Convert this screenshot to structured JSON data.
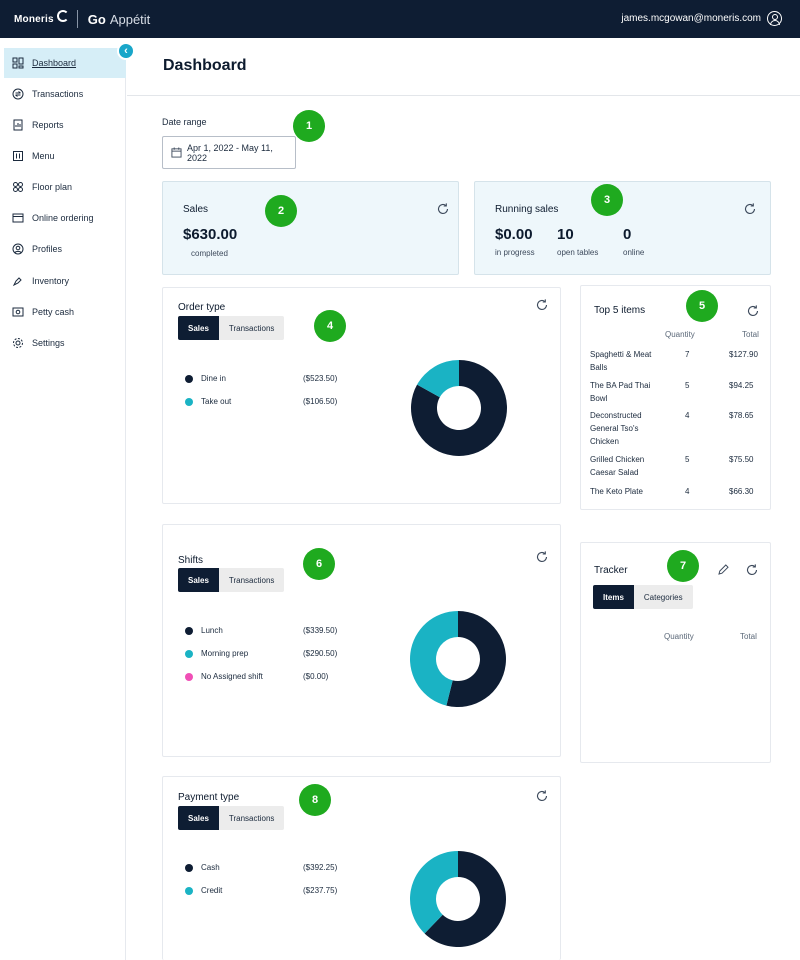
{
  "header": {
    "brand_moneris": "Moneris",
    "brand_go": "Go",
    "brand_appetit": "Appétit",
    "user_email": "james.mcgowan@moneris.com"
  },
  "sidebar": {
    "items": [
      {
        "label": "Dashboard",
        "icon": "dashboard-icon",
        "active": true
      },
      {
        "label": "Transactions",
        "icon": "transactions-icon"
      },
      {
        "label": "Reports",
        "icon": "reports-icon"
      },
      {
        "label": "Menu",
        "icon": "menu-icon"
      },
      {
        "label": "Floor plan",
        "icon": "floor-plan-icon"
      },
      {
        "label": "Online ordering",
        "icon": "online-ordering-icon"
      },
      {
        "label": "Profiles",
        "icon": "profiles-icon"
      },
      {
        "label": "Inventory",
        "icon": "inventory-icon"
      },
      {
        "label": "Petty cash",
        "icon": "petty-cash-icon"
      },
      {
        "label": "Settings",
        "icon": "settings-icon"
      }
    ]
  },
  "page": {
    "title": "Dashboard"
  },
  "date_range": {
    "label": "Date range",
    "value": "Apr 1, 2022 - May 11, 2022"
  },
  "sales": {
    "title": "Sales",
    "value": "$630.00",
    "sub": "completed"
  },
  "running_sales": {
    "title": "Running sales",
    "in_progress_value": "$0.00",
    "in_progress_label": "in progress",
    "open_tables_value": "10",
    "open_tables_label": "open tables",
    "online_value": "0",
    "online_label": "online"
  },
  "order_type": {
    "title": "Order type",
    "tab_sales": "Sales",
    "tab_transactions": "Transactions",
    "rows": [
      {
        "label": "Dine in",
        "value": "($523.50)",
        "amount": 523.5,
        "color": "#0e1d33"
      },
      {
        "label": "Take out",
        "value": "($106.50)",
        "amount": 106.5,
        "color": "#1ab3c4"
      }
    ]
  },
  "top5": {
    "title": "Top 5 items",
    "col_quantity": "Quantity",
    "col_total": "Total",
    "rows": [
      {
        "name": "Spaghetti & Meat Balls",
        "qty": "7",
        "total": "$127.90"
      },
      {
        "name": "The BA Pad Thai Bowl",
        "qty": "5",
        "total": "$94.25"
      },
      {
        "name": "Deconstructed General Tso's Chicken",
        "qty": "4",
        "total": "$78.65"
      },
      {
        "name": "Grilled Chicken Caesar Salad",
        "qty": "5",
        "total": "$75.50"
      },
      {
        "name": "The Keto Plate",
        "qty": "4",
        "total": "$66.30"
      }
    ]
  },
  "shifts": {
    "title": "Shifts",
    "tab_sales": "Sales",
    "tab_transactions": "Transactions",
    "rows": [
      {
        "label": "Lunch",
        "value": "($339.50)",
        "amount": 339.5,
        "color": "#0e1d33"
      },
      {
        "label": "Morning prep",
        "value": "($290.50)",
        "amount": 290.5,
        "color": "#1ab3c4"
      },
      {
        "label": "No Assigned shift",
        "value": "($0.00)",
        "amount": 0,
        "color": "#f04fb6"
      }
    ]
  },
  "tracker": {
    "title": "Tracker",
    "tab_items": "Items",
    "tab_categories": "Categories",
    "col_quantity": "Quantity",
    "col_total": "Total"
  },
  "payment_type": {
    "title": "Payment type",
    "tab_sales": "Sales",
    "tab_transactions": "Transactions",
    "rows": [
      {
        "label": "Cash",
        "value": "($392.25)",
        "amount": 392.25,
        "color": "#0e1d33"
      },
      {
        "label": "Credit",
        "value": "($237.75)",
        "amount": 237.75,
        "color": "#1ab3c4"
      }
    ]
  },
  "badges": [
    "1",
    "2",
    "3",
    "4",
    "5",
    "6",
    "7",
    "8"
  ]
}
